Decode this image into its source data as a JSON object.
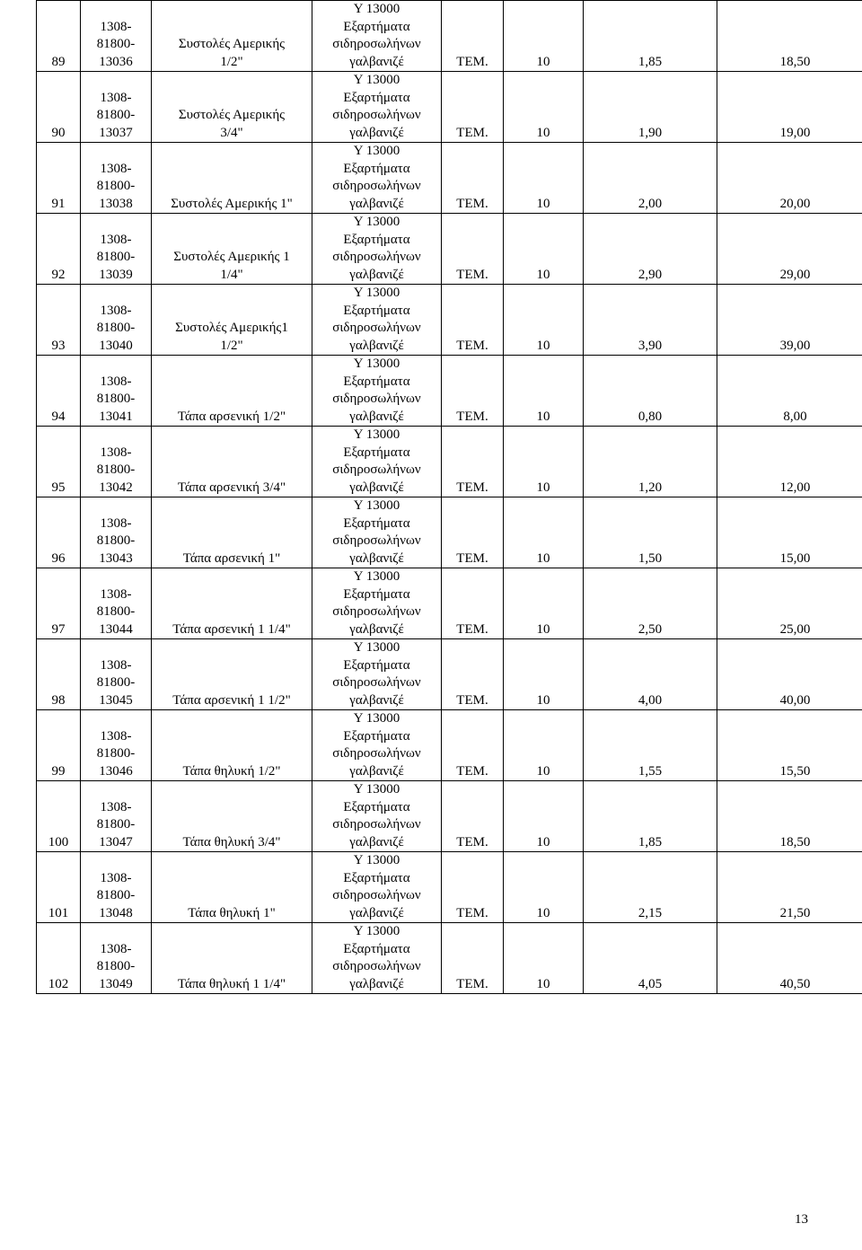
{
  "category_text": "Υ 13000\nΕξαρτήματα\nσιδηροσωλήνων\nγαλβανιζέ",
  "unit": "TEM.",
  "page_number": "13",
  "rows": [
    {
      "num": "89",
      "code": "1308-\n81800-\n13036",
      "desc": "Συστολές Αμερικής\n1/2\"",
      "qty": "10",
      "price": "1,85",
      "total": "18,50"
    },
    {
      "num": "90",
      "code": "1308-\n81800-\n13037",
      "desc": "Συστολές Αμερικής\n3/4\"",
      "qty": "10",
      "price": "1,90",
      "total": "19,00"
    },
    {
      "num": "91",
      "code": "1308-\n81800-\n13038",
      "desc": "Συστολές Αμερικής 1\"",
      "qty": "10",
      "price": "2,00",
      "total": "20,00"
    },
    {
      "num": "92",
      "code": "1308-\n81800-\n13039",
      "desc": "Συστολές Αμερικής 1\n1/4\"",
      "qty": "10",
      "price": "2,90",
      "total": "29,00"
    },
    {
      "num": "93",
      "code": "1308-\n81800-\n13040",
      "desc": "Συστολές Αμερικής1\n1/2\"",
      "qty": "10",
      "price": "3,90",
      "total": "39,00"
    },
    {
      "num": "94",
      "code": "1308-\n81800-\n13041",
      "desc": "Τάπα αρσενική 1/2\"",
      "qty": "10",
      "price": "0,80",
      "total": "8,00"
    },
    {
      "num": "95",
      "code": "1308-\n81800-\n13042",
      "desc": "Τάπα αρσενική 3/4\"",
      "qty": "10",
      "price": "1,20",
      "total": "12,00"
    },
    {
      "num": "96",
      "code": "1308-\n81800-\n13043",
      "desc": "Τάπα αρσενική 1\"",
      "qty": "10",
      "price": "1,50",
      "total": "15,00"
    },
    {
      "num": "97",
      "code": "1308-\n81800-\n13044",
      "desc": "Τάπα αρσενική 1 1/4\"",
      "qty": "10",
      "price": "2,50",
      "total": "25,00"
    },
    {
      "num": "98",
      "code": "1308-\n81800-\n13045",
      "desc": "Τάπα αρσενική  1 1/2\"",
      "qty": "10",
      "price": "4,00",
      "total": "40,00"
    },
    {
      "num": "99",
      "code": "1308-\n81800-\n13046",
      "desc": "Τάπα θηλυκή 1/2\"",
      "qty": "10",
      "price": "1,55",
      "total": "15,50"
    },
    {
      "num": "100",
      "code": "1308-\n81800-\n13047",
      "desc": "Τάπα θηλυκή 3/4\"",
      "qty": "10",
      "price": "1,85",
      "total": "18,50"
    },
    {
      "num": "101",
      "code": "1308-\n81800-\n13048",
      "desc": "Τάπα θηλυκή 1\"",
      "qty": "10",
      "price": "2,15",
      "total": "21,50"
    },
    {
      "num": "102",
      "code": "1308-\n81800-\n13049",
      "desc": "Τάπα θηλυκή 1 1/4\"",
      "qty": "10",
      "price": "4,05",
      "total": "40,50"
    }
  ]
}
